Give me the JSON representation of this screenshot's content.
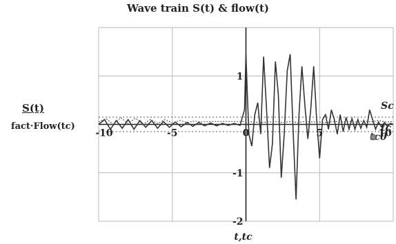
{
  "chart_data": {
    "type": "line",
    "title": "Wave train  S(t) & flow(t)",
    "ylabel_top": "S(t)",
    "ylabel_bottom": "fact·Flow(tc)",
    "xlabel": "t,tc",
    "xlim": [
      -10,
      10
    ],
    "ylim": [
      -2,
      2
    ],
    "x_ticks": [
      "-10",
      "-5",
      "0",
      "5",
      "10"
    ],
    "y_ticks": [
      "1",
      "-1",
      "-2"
    ],
    "grid": true,
    "annotations": [
      "tc0",
      "Sc",
      "tc"
    ],
    "series": [
      {
        "style": "solid",
        "x": [
          -10,
          -9.6,
          -9.2,
          -8.8,
          -8.4,
          -8.0,
          -7.6,
          -7.2,
          -6.8,
          -6.4,
          -6.0,
          -5.6,
          -5.2,
          -4.8,
          -4.4,
          -4.0,
          -3.6,
          -3.2,
          -2.8,
          -2.4,
          -2.0,
          -1.6,
          -1.2,
          -0.8,
          -0.4,
          -0.1,
          0.0,
          0.1,
          0.2,
          0.4,
          0.6,
          0.8,
          1.0,
          1.2,
          1.4,
          1.6,
          1.8,
          2.0,
          2.2,
          2.4,
          2.6,
          2.8,
          3.0,
          3.2,
          3.4,
          3.6,
          3.8,
          4.0,
          4.2,
          4.4,
          4.6,
          4.8,
          5.0,
          5.2,
          5.4,
          5.6,
          5.8,
          6.0,
          6.2,
          6.4,
          6.6,
          6.8,
          7.0,
          7.2,
          7.4,
          7.6,
          7.8,
          8.0,
          8.2,
          8.4,
          8.6,
          8.8,
          9.0,
          9.2,
          9.4,
          9.6,
          9.8,
          10.0
        ],
        "y": [
          0.0,
          0.1,
          -0.1,
          0.08,
          -0.08,
          0.1,
          -0.1,
          0.08,
          -0.06,
          0.08,
          -0.08,
          0.06,
          -0.06,
          0.05,
          -0.05,
          0.04,
          -0.04,
          0.04,
          -0.03,
          0.03,
          -0.03,
          0.02,
          -0.02,
          0.02,
          -0.02,
          0.3,
          1.45,
          0.6,
          -0.2,
          -0.45,
          0.2,
          0.45,
          -0.2,
          1.4,
          0.3,
          -0.9,
          -0.4,
          1.3,
          0.6,
          -1.1,
          -0.2,
          1.1,
          1.45,
          -0.1,
          -1.55,
          0.2,
          1.2,
          0.4,
          -0.3,
          0.3,
          1.2,
          0.1,
          -0.7,
          0.1,
          0.2,
          -0.1,
          0.3,
          0.1,
          -0.2,
          0.2,
          -0.15,
          0.15,
          -0.1,
          0.12,
          -0.1,
          0.1,
          -0.08,
          0.08,
          -0.06,
          0.3,
          0.1,
          -0.1,
          0.05,
          -0.05,
          0.04,
          -0.04,
          0.02,
          0.0
        ]
      },
      {
        "style": "dotted",
        "x": [
          -10,
          -9.5,
          -9.0,
          -8.5,
          -8.0,
          -7.5,
          -7.0,
          -6.5,
          -6.0,
          -5.5,
          -5.0,
          -4.5,
          -4.0,
          -3.5,
          -3.0,
          -2.5,
          -2.0,
          -1.5,
          -1.0,
          -0.5,
          0.0,
          0.5,
          1.0,
          1.5,
          2.0,
          2.5,
          3.0,
          3.5,
          4.0,
          4.5,
          5.0,
          5.5,
          6.0,
          6.5,
          7.0,
          7.5,
          8.0,
          8.5,
          9.0,
          9.5,
          10.0
        ],
        "y": [
          0.05,
          0.12,
          0.0,
          0.14,
          0.02,
          0.13,
          0.0,
          0.1,
          0.02,
          0.1,
          0.03,
          0.08,
          0.04,
          0.07,
          0.05,
          0.06,
          0.06,
          0.06,
          0.06,
          0.06,
          0.06,
          0.05,
          0.04,
          0.05,
          0.06,
          0.04,
          0.06,
          0.04,
          0.06,
          0.05,
          0.05,
          0.04,
          0.06,
          0.05,
          0.06,
          0.05,
          0.07,
          0.05,
          0.08,
          0.05,
          0.06
        ]
      }
    ]
  }
}
